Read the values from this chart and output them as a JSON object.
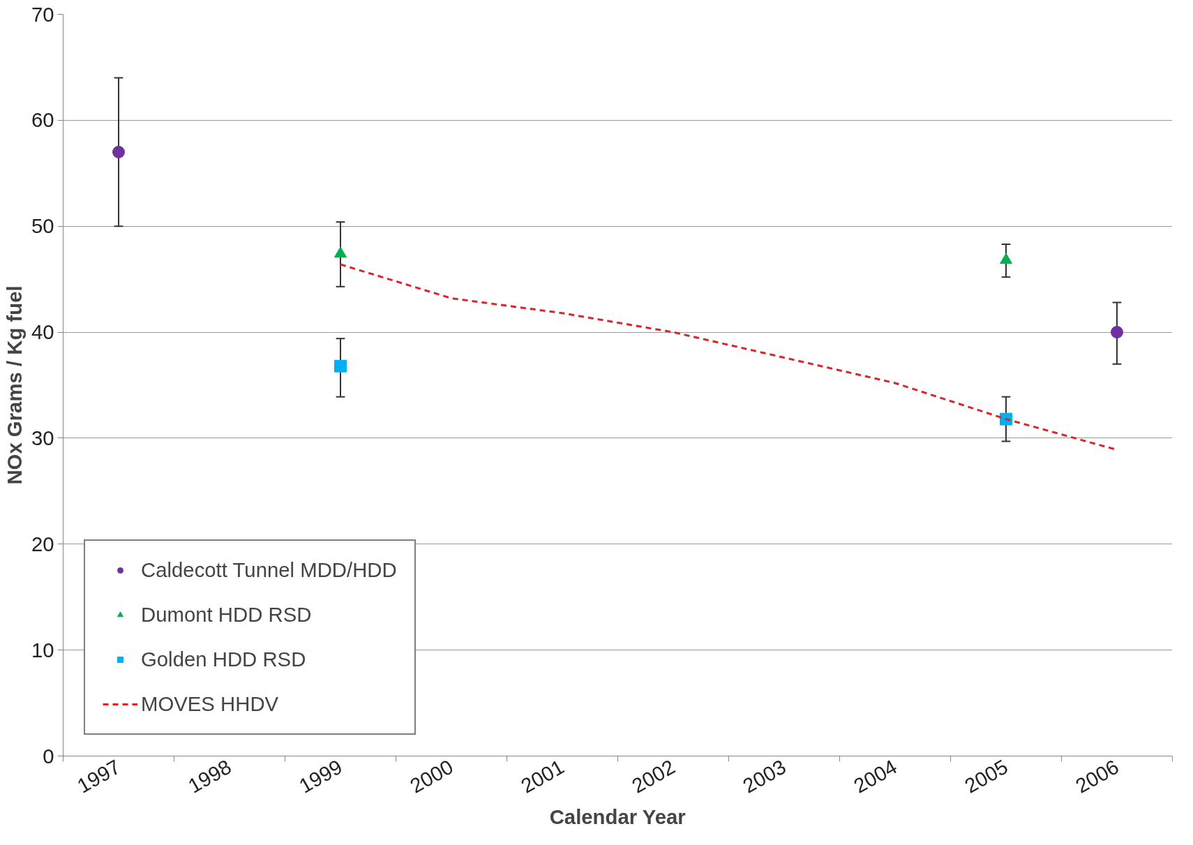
{
  "chart_data": {
    "type": "scatter",
    "xlabel": "Calendar Year",
    "ylabel": "NOx Grams / Kg fuel",
    "categories": [
      "1997",
      "1998",
      "1999",
      "2000",
      "2001",
      "2002",
      "2003",
      "2004",
      "2005",
      "2006"
    ],
    "ylim": [
      0,
      70
    ],
    "yticks": [
      0,
      10,
      20,
      30,
      40,
      50,
      60,
      70
    ],
    "grid": "y",
    "legend": "bottom left",
    "series": [
      {
        "name": "Caldecott Tunnel MDD/HDD",
        "color": "#7030a0",
        "marker": "circle",
        "values": [
          57,
          null,
          null,
          null,
          null,
          null,
          null,
          null,
          null,
          40
        ],
        "errors": [
          [
            50,
            64
          ],
          null,
          null,
          null,
          null,
          null,
          null,
          null,
          null,
          [
            37,
            42.8
          ]
        ]
      },
      {
        "name": "Dumont HDD RSD",
        "color": "#00b050",
        "marker": "triangle",
        "values": [
          null,
          null,
          47.4,
          null,
          null,
          null,
          null,
          null,
          46.8,
          null
        ],
        "errors": [
          null,
          null,
          [
            44.3,
            50.4
          ],
          null,
          null,
          null,
          null,
          null,
          [
            45.2,
            48.3
          ],
          null
        ]
      },
      {
        "name": "Golden HDD RSD",
        "color": "#00b0f0",
        "marker": "square",
        "values": [
          null,
          null,
          36.8,
          null,
          null,
          null,
          null,
          null,
          31.8,
          null
        ],
        "errors": [
          null,
          null,
          [
            33.9,
            39.4
          ],
          null,
          null,
          null,
          null,
          null,
          [
            29.7,
            33.9
          ],
          null
        ]
      },
      {
        "name": "MOVES HHDV",
        "color": "#d9262a",
        "type": "line",
        "line_style": "dashed",
        "marker": "none",
        "values": [
          null,
          null,
          46.4,
          43.2,
          41.8,
          40.0,
          37.6,
          35.2,
          31.8,
          28.9
        ]
      }
    ]
  }
}
